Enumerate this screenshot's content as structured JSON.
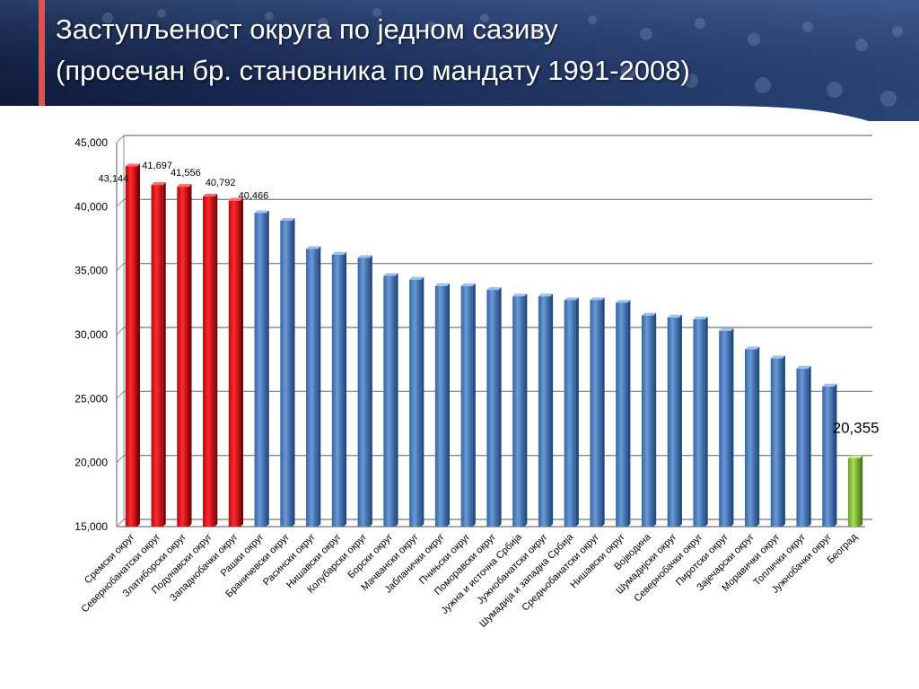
{
  "slide": {
    "title_line1": "Заступљеност округа по једном сазиву",
    "title_line2": "(просечан бр. становника по мандату  1991-2008)"
  },
  "colors": {
    "header_dark": "#0d1a3a",
    "header_mid": "#3a5a93",
    "accent_red_bar": "#d9534f",
    "series_red": "#e8141a",
    "series_blue": "#4a7fc4",
    "series_green": "#8cc63f",
    "gridline": "#8c8c8c"
  },
  "chart_data": {
    "type": "bar",
    "title": "",
    "xlabel": "",
    "ylabel": "",
    "ylim": [
      15000,
      45000
    ],
    "yticks": [
      15000,
      20000,
      25000,
      30000,
      35000,
      40000,
      45000
    ],
    "ytick_labels": [
      "15,000",
      "20,000",
      "25,000",
      "30,000",
      "35,000",
      "40,000",
      "45,000"
    ],
    "grid": true,
    "categories": [
      "Сремски округ",
      "Севернобанатски округ",
      "Златиборски округ",
      "Подунавски округ",
      "Западнобачки округ",
      "Рашки округ",
      "Браничевски округ",
      "Расински округ",
      "Нишавски округ",
      "Колубарски округ",
      "Борски округ",
      "Мачвански округ",
      "Јабланички округ",
      "Пчињски округ",
      "Поморавски округ",
      "Јужна и источна Србија",
      "Јужнобанатски округ",
      "Шумадија и западна Србија",
      "Средњобанатски округ",
      "Нишавски округ",
      "Војводина",
      "Шумадијски округ",
      "Севернобачки округ",
      "Пиротски округ",
      "Зајечарски округ",
      "Моравички округ",
      "Топлички округ",
      "Јужнобачки округ",
      "Београд"
    ],
    "values": [
      43144,
      41697,
      41556,
      40792,
      40466,
      39500,
      38900,
      36700,
      36250,
      36000,
      34600,
      34300,
      33800,
      33800,
      33500,
      33000,
      33000,
      32700,
      32700,
      32500,
      31500,
      31350,
      31200,
      30300,
      28850,
      28150,
      27350,
      25950,
      20355
    ],
    "bar_groups": [
      "red",
      "red",
      "red",
      "red",
      "red",
      "blue",
      "blue",
      "blue",
      "blue",
      "blue",
      "blue",
      "blue",
      "blue",
      "blue",
      "blue",
      "blue",
      "blue",
      "blue",
      "blue",
      "blue",
      "blue",
      "blue",
      "blue",
      "blue",
      "blue",
      "blue",
      "blue",
      "blue",
      "green"
    ],
    "data_labels": [
      {
        "index": 0,
        "text": "43,144"
      },
      {
        "index": 1,
        "text": "41,697"
      },
      {
        "index": 2,
        "text": "41,556"
      },
      {
        "index": 3,
        "text": "40,792"
      },
      {
        "index": 4,
        "text": "40,466"
      },
      {
        "index": 28,
        "text": "20,355"
      }
    ]
  }
}
